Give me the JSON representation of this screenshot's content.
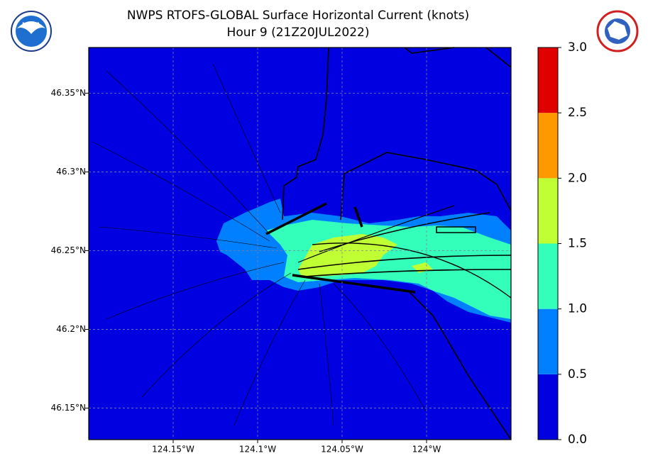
{
  "title": "NWPS RTOFS-GLOBAL Surface Horizontal Current (knots)",
  "subtitle": "Hour 9 (21Z20JUL2022)",
  "noaa_logo": "NOAA",
  "map": {
    "xlim": [
      -124.2,
      -123.95
    ],
    "ylim": [
      46.13,
      46.379
    ],
    "xticks": [
      {
        "value": -124.15,
        "label": "124.15°W"
      },
      {
        "value": -124.1,
        "label": "124.1°W"
      },
      {
        "value": -124.05,
        "label": "124.05°W"
      },
      {
        "value": -124,
        "label": "124°W"
      }
    ],
    "yticks": [
      {
        "value": 46.35,
        "label": "46.35°N"
      },
      {
        "value": 46.3,
        "label": "46.3°N"
      },
      {
        "value": 46.25,
        "label": "46.25°N"
      },
      {
        "value": 46.2,
        "label": "46.2°N"
      },
      {
        "value": 46.15,
        "label": "46.15°N"
      }
    ],
    "grid": true
  },
  "colorbar": {
    "ticks": [
      {
        "value": 0,
        "label": "0.0"
      },
      {
        "value": 0.5,
        "label": "0.5"
      },
      {
        "value": 1,
        "label": "1.0"
      },
      {
        "value": 1.5,
        "label": "1.5"
      },
      {
        "value": 2,
        "label": "2.0"
      },
      {
        "value": 2.5,
        "label": "2.5"
      },
      {
        "value": 3,
        "label": "3.0"
      }
    ],
    "colors": [
      "#0000e0",
      "#0080ff",
      "#33ffbb",
      "#c0ff33",
      "#ff9900",
      "#e00000"
    ]
  }
}
